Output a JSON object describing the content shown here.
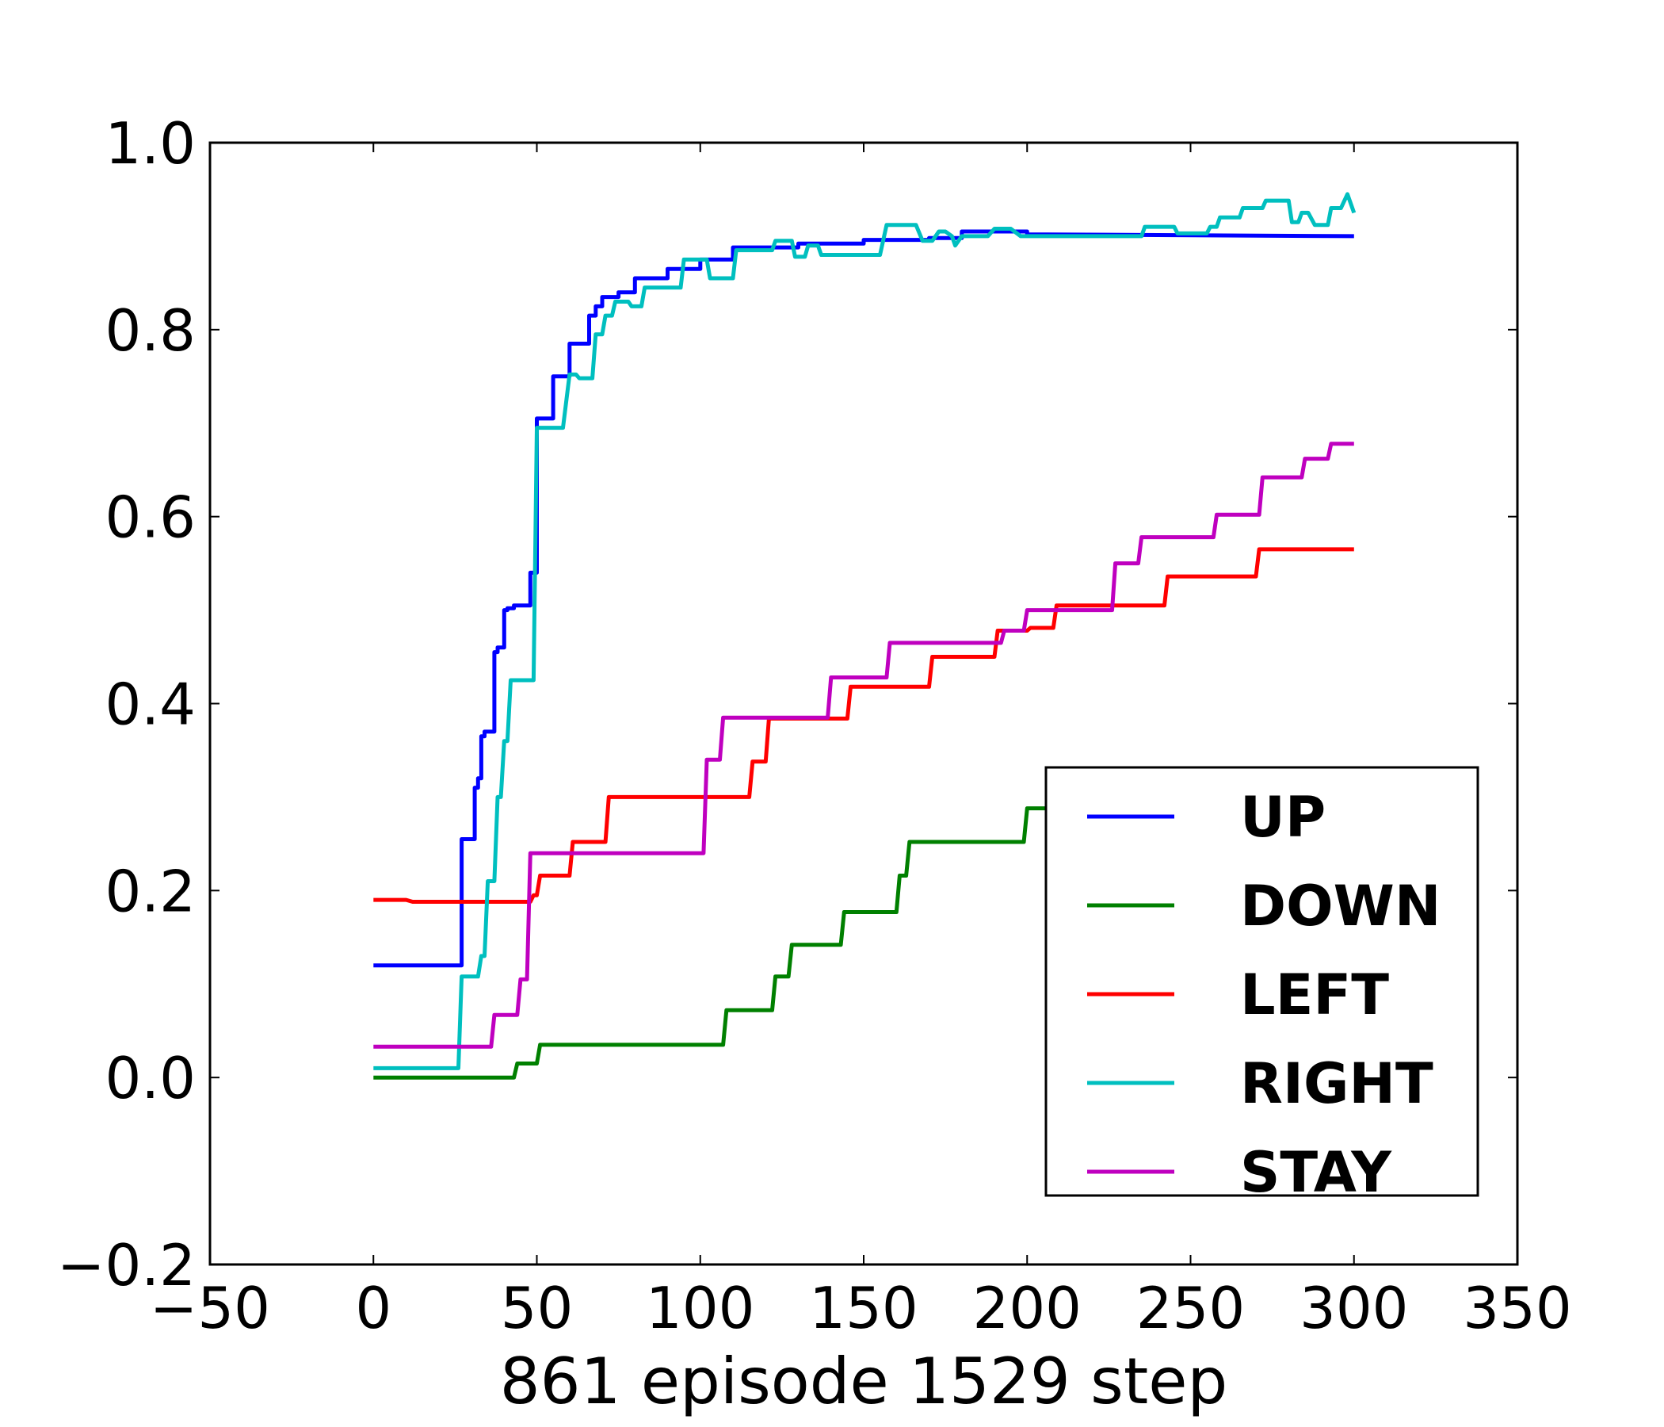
{
  "chart_data": {
    "type": "line",
    "title": "",
    "xlabel": "861 episode 1529 step",
    "ylabel": "",
    "xlim": [
      -50,
      350
    ],
    "ylim": [
      -0.2,
      1.0
    ],
    "xticks": [
      -50,
      0,
      50,
      100,
      150,
      200,
      250,
      300,
      350
    ],
    "yticks": [
      -0.2,
      0.0,
      0.2,
      0.4,
      0.6,
      0.8,
      1.0
    ],
    "xtick_labels": [
      "−50",
      "0",
      "50",
      "100",
      "150",
      "200",
      "250",
      "300",
      "350"
    ],
    "ytick_labels": [
      "−0.2",
      "0.0",
      "0.2",
      "0.4",
      "0.6",
      "0.8",
      "1.0"
    ],
    "grid": false,
    "legend_position": "lower-right",
    "series": [
      {
        "name": "UP",
        "color": "#0000ff",
        "x": [
          0,
          27,
          27,
          31,
          31,
          32,
          32,
          33,
          33,
          34,
          34,
          37,
          37,
          38,
          38,
          40,
          40,
          41,
          41,
          43,
          43,
          48,
          48,
          50,
          50,
          55,
          55,
          60,
          60,
          66,
          66,
          68,
          68,
          70,
          70,
          75,
          75,
          80,
          80,
          90,
          90,
          100,
          100,
          110,
          110,
          130,
          130,
          150,
          150,
          170,
          170,
          180,
          180,
          190,
          190,
          200,
          200,
          300
        ],
        "y": [
          0.12,
          0.12,
          0.255,
          0.255,
          0.31,
          0.31,
          0.32,
          0.32,
          0.365,
          0.365,
          0.37,
          0.37,
          0.455,
          0.455,
          0.46,
          0.46,
          0.5,
          0.5,
          0.502,
          0.502,
          0.505,
          0.505,
          0.54,
          0.54,
          0.705,
          0.705,
          0.75,
          0.75,
          0.785,
          0.785,
          0.815,
          0.815,
          0.825,
          0.825,
          0.835,
          0.835,
          0.84,
          0.84,
          0.855,
          0.855,
          0.865,
          0.865,
          0.875,
          0.875,
          0.888,
          0.888,
          0.892,
          0.892,
          0.896,
          0.896,
          0.898,
          0.898,
          0.905,
          0.905,
          0.905,
          0.905,
          0.902,
          0.9
        ]
      },
      {
        "name": "DOWN",
        "color": "#008000",
        "x": [
          0,
          43,
          44,
          50,
          51,
          107,
          108,
          122,
          123,
          127,
          128,
          143,
          144,
          160,
          161,
          163,
          164,
          199,
          200,
          247,
          248,
          300
        ],
        "y": [
          0.0,
          0.0,
          0.015,
          0.015,
          0.035,
          0.035,
          0.072,
          0.072,
          0.108,
          0.108,
          0.142,
          0.142,
          0.177,
          0.177,
          0.216,
          0.216,
          0.252,
          0.252,
          0.288,
          0.288,
          0.328,
          0.328
        ]
      },
      {
        "name": "LEFT",
        "color": "#ff0000",
        "x": [
          0,
          10,
          12,
          48,
          49,
          50,
          51,
          60,
          61,
          71,
          72,
          115,
          116,
          120,
          121,
          145,
          146,
          170,
          171,
          190,
          191,
          200,
          201,
          208,
          209,
          242,
          243,
          270,
          271,
          300
        ],
        "y": [
          0.19,
          0.19,
          0.188,
          0.188,
          0.195,
          0.195,
          0.216,
          0.216,
          0.252,
          0.252,
          0.3,
          0.3,
          0.338,
          0.338,
          0.384,
          0.384,
          0.418,
          0.418,
          0.45,
          0.45,
          0.478,
          0.478,
          0.481,
          0.481,
          0.505,
          0.505,
          0.536,
          0.536,
          0.565,
          0.565
        ]
      },
      {
        "name": "RIGHT",
        "color": "#00bfbf",
        "x": [
          0,
          26,
          27,
          32,
          33,
          34,
          35,
          37,
          38,
          39,
          40,
          41,
          42,
          49,
          50,
          58,
          60,
          62,
          63,
          67,
          68,
          70,
          71,
          73,
          74,
          78,
          79,
          82,
          83,
          94,
          95,
          102,
          103,
          110,
          111,
          122,
          123,
          128,
          129,
          132,
          133,
          136,
          137,
          155,
          157,
          166,
          168,
          171,
          173,
          175,
          177,
          178,
          180,
          188,
          190,
          195,
          198,
          210,
          220,
          235,
          236,
          245,
          246,
          255,
          256,
          258,
          259,
          265,
          266,
          272,
          273,
          280,
          281,
          283,
          284,
          286,
          288,
          292,
          293,
          296,
          298,
          300
        ],
        "y": [
          0.01,
          0.01,
          0.108,
          0.108,
          0.13,
          0.13,
          0.21,
          0.21,
          0.3,
          0.3,
          0.36,
          0.36,
          0.425,
          0.425,
          0.695,
          0.695,
          0.752,
          0.752,
          0.748,
          0.748,
          0.795,
          0.795,
          0.815,
          0.815,
          0.83,
          0.83,
          0.825,
          0.825,
          0.845,
          0.845,
          0.875,
          0.875,
          0.855,
          0.855,
          0.885,
          0.885,
          0.895,
          0.895,
          0.878,
          0.878,
          0.89,
          0.89,
          0.88,
          0.88,
          0.912,
          0.912,
          0.895,
          0.895,
          0.905,
          0.905,
          0.9,
          0.89,
          0.9,
          0.9,
          0.908,
          0.908,
          0.9,
          0.9,
          0.9,
          0.9,
          0.91,
          0.91,
          0.903,
          0.903,
          0.91,
          0.91,
          0.92,
          0.92,
          0.93,
          0.93,
          0.938,
          0.938,
          0.915,
          0.915,
          0.925,
          0.925,
          0.912,
          0.912,
          0.93,
          0.93,
          0.945,
          0.925
        ]
      },
      {
        "name": "STAY",
        "color": "#bf00bf",
        "x": [
          0,
          36,
          37,
          44,
          45,
          47,
          48,
          101,
          102,
          106,
          107,
          139,
          140,
          157,
          158,
          192,
          193,
          199,
          200,
          226,
          227,
          234,
          235,
          257,
          258,
          271,
          272,
          284,
          285,
          292,
          293,
          300
        ],
        "y": [
          0.033,
          0.033,
          0.067,
          0.067,
          0.105,
          0.105,
          0.24,
          0.24,
          0.34,
          0.34,
          0.385,
          0.385,
          0.428,
          0.428,
          0.465,
          0.465,
          0.478,
          0.478,
          0.5,
          0.5,
          0.55,
          0.55,
          0.578,
          0.578,
          0.602,
          0.602,
          0.642,
          0.642,
          0.662,
          0.662,
          0.678,
          0.678
        ]
      }
    ]
  }
}
